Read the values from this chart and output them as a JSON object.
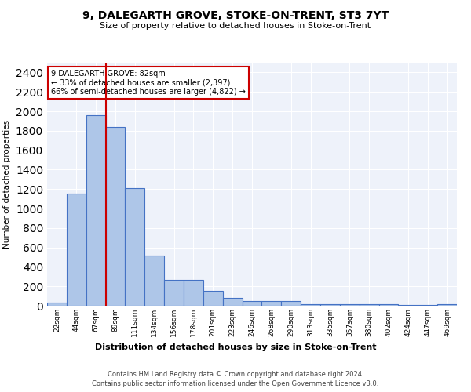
{
  "title": "9, DALEGARTH GROVE, STOKE-ON-TRENT, ST3 7YT",
  "subtitle": "Size of property relative to detached houses in Stoke-on-Trent",
  "xlabel": "Distribution of detached houses by size in Stoke-on-Trent",
  "ylabel": "Number of detached properties",
  "bin_labels": [
    "22sqm",
    "44sqm",
    "67sqm",
    "89sqm",
    "111sqm",
    "134sqm",
    "156sqm",
    "178sqm",
    "201sqm",
    "223sqm",
    "246sqm",
    "268sqm",
    "290sqm",
    "313sqm",
    "335sqm",
    "357sqm",
    "380sqm",
    "402sqm",
    "424sqm",
    "447sqm",
    "469sqm"
  ],
  "bar_values": [
    30,
    1150,
    1960,
    1840,
    1210,
    515,
    265,
    265,
    155,
    80,
    50,
    45,
    45,
    20,
    20,
    15,
    15,
    20,
    5,
    5,
    20
  ],
  "bar_color": "#aec6e8",
  "bar_edge_color": "#4472c4",
  "ylim": [
    0,
    2500
  ],
  "yticks": [
    0,
    200,
    400,
    600,
    800,
    1000,
    1200,
    1400,
    1600,
    1800,
    2000,
    2200,
    2400
  ],
  "vline_color": "#cc0000",
  "vline_position": 2.5,
  "annotation_text": "9 DALEGARTH GROVE: 82sqm\n← 33% of detached houses are smaller (2,397)\n66% of semi-detached houses are larger (4,822) →",
  "annotation_box_color": "#ffffff",
  "annotation_box_edge_color": "#cc0000",
  "footer_line1": "Contains HM Land Registry data © Crown copyright and database right 2024.",
  "footer_line2": "Contains public sector information licensed under the Open Government Licence v3.0.",
  "background_color": "#eef2fa",
  "grid_color": "#ffffff",
  "title_fontsize": 10,
  "subtitle_fontsize": 8,
  "xlabel_fontsize": 8,
  "ylabel_fontsize": 7.5,
  "tick_fontsize": 6.5,
  "annotation_fontsize": 7,
  "footer_fontsize": 6
}
